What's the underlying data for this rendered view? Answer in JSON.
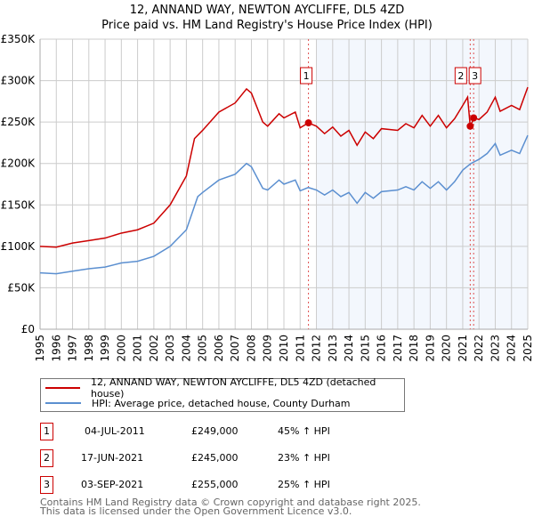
{
  "chart_data": {
    "type": "line",
    "title": "12, ANNAND WAY, NEWTON AYCLIFFE, DL5 4ZD",
    "subtitle": "Price paid vs. HM Land Registry's House Price Index (HPI)",
    "xlim": [
      1995,
      2025
    ],
    "ylim": [
      0,
      350000
    ],
    "x_ticks": [
      "1995",
      "1996",
      "1997",
      "1998",
      "1999",
      "2000",
      "2001",
      "2002",
      "2003",
      "2004",
      "2005",
      "2006",
      "2007",
      "2008",
      "2009",
      "2010",
      "2011",
      "2012",
      "2013",
      "2014",
      "2015",
      "2016",
      "2017",
      "2018",
      "2019",
      "2020",
      "2021",
      "2022",
      "2023",
      "2024",
      "2025"
    ],
    "y_ticks": [
      {
        "v": 0,
        "l": "£0"
      },
      {
        "v": 50000,
        "l": "£50K"
      },
      {
        "v": 100000,
        "l": "£100K"
      },
      {
        "v": 150000,
        "l": "£150K"
      },
      {
        "v": 200000,
        "l": "£200K"
      },
      {
        "v": 250000,
        "l": "£250K"
      },
      {
        "v": 300000,
        "l": "£300K"
      },
      {
        "v": 350000,
        "l": "£350K"
      }
    ],
    "grid": true,
    "shaded_from": 2012.0,
    "series": [
      {
        "name": "12, ANNAND WAY, NEWTON AYCLIFFE, DL5 4ZD (detached house)",
        "color": "#cc0000",
        "x": [
          1995,
          1996,
          1997,
          1998,
          1999,
          2000,
          2001,
          2002,
          2003,
          2004,
          2004.5,
          2005,
          2006,
          2007,
          2007.7,
          2008,
          2008.7,
          2009,
          2009.7,
          2010,
          2010.7,
          2011,
          2011.5,
          2012,
          2012.5,
          2013,
          2013.5,
          2014,
          2014.5,
          2015,
          2015.5,
          2016,
          2017,
          2017.5,
          2018,
          2018.5,
          2019,
          2019.5,
          2020,
          2020.5,
          2021,
          2021.3,
          2021.46,
          2021.7,
          2022,
          2022.5,
          2023,
          2023.3,
          2024,
          2024.5,
          2025
        ],
        "y": [
          100000,
          99000,
          104000,
          107000,
          110000,
          116000,
          120000,
          128000,
          150000,
          185000,
          230000,
          240000,
          262000,
          273000,
          290000,
          285000,
          250000,
          245000,
          260000,
          255000,
          262000,
          243000,
          249000,
          245000,
          236000,
          244000,
          233000,
          240000,
          222000,
          238000,
          230000,
          242000,
          240000,
          248000,
          243000,
          258000,
          245000,
          258000,
          243000,
          254000,
          270000,
          280000,
          245000,
          255000,
          253000,
          262000,
          280000,
          263000,
          270000,
          265000,
          292000
        ]
      },
      {
        "name": "HPI: Average price, detached house, County Durham",
        "color": "#5b8fd0",
        "x": [
          1995,
          1996,
          1997,
          1998,
          1999,
          2000,
          2001,
          2002,
          2003,
          2004,
          2004.7,
          2005,
          2006,
          2007,
          2007.7,
          2008,
          2008.7,
          2009,
          2009.7,
          2010,
          2010.7,
          2011,
          2011.5,
          2012,
          2012.5,
          2013,
          2013.5,
          2014,
          2014.5,
          2015,
          2015.5,
          2016,
          2017,
          2017.5,
          2018,
          2018.5,
          2019,
          2019.5,
          2020,
          2020.5,
          2021,
          2021.5,
          2022,
          2022.5,
          2023,
          2023.3,
          2024,
          2024.5,
          2025
        ],
        "y": [
          68000,
          67000,
          70000,
          73000,
          75000,
          80000,
          82000,
          88000,
          100000,
          120000,
          160000,
          165000,
          180000,
          187000,
          200000,
          196000,
          170000,
          168000,
          180000,
          175000,
          180000,
          167000,
          171000,
          168000,
          162000,
          168000,
          160000,
          165000,
          152000,
          165000,
          158000,
          166000,
          168000,
          172000,
          168000,
          178000,
          170000,
          178000,
          168000,
          178000,
          192000,
          200000,
          205000,
          212000,
          224000,
          210000,
          216000,
          212000,
          234000
        ]
      }
    ],
    "sales": [
      {
        "n": "1",
        "x": 2011.51,
        "y": 249000,
        "date": "04-JUL-2011",
        "price": "£249,000",
        "hpi": "45% ↑ HPI"
      },
      {
        "n": "2",
        "x": 2021.46,
        "y": 245000,
        "date": "17-JUN-2021",
        "price": "£245,000",
        "hpi": "23% ↑ HPI"
      },
      {
        "n": "3",
        "x": 2021.67,
        "y": 255000,
        "date": "03-SEP-2021",
        "price": "£255,000",
        "hpi": "25% ↑ HPI"
      }
    ]
  },
  "footer": {
    "line1": "Contains HM Land Registry data © Crown copyright and database right 2025.",
    "line2": "This data is licensed under the Open Government Licence v3.0."
  }
}
